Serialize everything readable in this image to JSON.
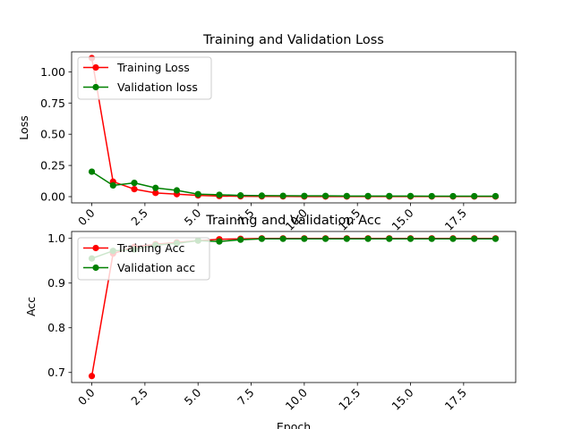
{
  "chart_data": [
    {
      "type": "line",
      "title": "Training and Validation Loss",
      "xlabel": "",
      "ylabel": "Loss",
      "xlim": [
        -0.95,
        19.95
      ],
      "ylim": [
        -0.05,
        1.16
      ],
      "xticks": [
        "0.0",
        "2.5",
        "5.0",
        "7.5",
        "10.0",
        "12.5",
        "15.0",
        "17.5"
      ],
      "xtick_values": [
        0,
        2.5,
        5,
        7.5,
        10,
        12.5,
        15,
        17.5
      ],
      "yticks": [
        "0.00",
        "0.25",
        "0.50",
        "0.75",
        "1.00"
      ],
      "ytick_values": [
        0,
        0.25,
        0.5,
        0.75,
        1.0
      ],
      "grid": false,
      "legend_position": "top-left",
      "x": [
        0,
        1,
        2,
        3,
        4,
        5,
        6,
        7,
        8,
        9,
        10,
        11,
        12,
        13,
        14,
        15,
        16,
        17,
        18,
        19
      ],
      "series": [
        {
          "name": "Training Loss",
          "color": "#ff0000",
          "values": [
            1.11,
            0.12,
            0.06,
            0.03,
            0.02,
            0.01,
            0.005,
            0.003,
            0.002,
            0.002,
            0.001,
            0.001,
            0.001,
            0.001,
            0.001,
            0.001,
            0.001,
            0.001,
            0.001,
            0.001
          ]
        },
        {
          "name": "Validation loss",
          "color": "#008000",
          "values": [
            0.2,
            0.09,
            0.11,
            0.07,
            0.05,
            0.02,
            0.015,
            0.01,
            0.008,
            0.007,
            0.006,
            0.006,
            0.005,
            0.005,
            0.005,
            0.005,
            0.004,
            0.004,
            0.004,
            0.004
          ]
        }
      ]
    },
    {
      "type": "line",
      "title": "Training and Validation Acc",
      "xlabel": "Epoch",
      "ylabel": "Acc",
      "xlim": [
        -0.95,
        19.95
      ],
      "ylim": [
        0.6775,
        1.0154
      ],
      "xticks": [
        "0.0",
        "2.5",
        "5.0",
        "7.5",
        "10.0",
        "12.5",
        "15.0",
        "17.5"
      ],
      "xtick_values": [
        0,
        2.5,
        5,
        7.5,
        10,
        12.5,
        15,
        17.5
      ],
      "yticks": [
        "0.7",
        "0.8",
        "0.9",
        "1.0"
      ],
      "ytick_values": [
        0.7,
        0.8,
        0.9,
        1.0
      ],
      "grid": false,
      "legend_position": "top-left",
      "x": [
        0,
        1,
        2,
        3,
        4,
        5,
        6,
        7,
        8,
        9,
        10,
        11,
        12,
        13,
        14,
        15,
        16,
        17,
        18,
        19
      ],
      "series": [
        {
          "name": "Training Acc",
          "color": "#ff0000",
          "values": [
            0.692,
            0.966,
            0.981,
            0.987,
            0.991,
            0.995,
            0.998,
            0.999,
            1.0,
            1.0,
            1.0,
            1.0,
            1.0,
            1.0,
            1.0,
            1.0,
            1.0,
            1.0,
            1.0,
            1.0
          ]
        },
        {
          "name": "Validation acc",
          "color": "#008000",
          "values": [
            0.955,
            0.972,
            0.975,
            0.985,
            0.989,
            0.995,
            0.993,
            0.997,
            0.999,
            0.999,
            0.999,
            0.999,
            0.999,
            0.999,
            0.999,
            0.999,
            0.999,
            0.999,
            0.999,
            0.999
          ]
        }
      ]
    }
  ]
}
